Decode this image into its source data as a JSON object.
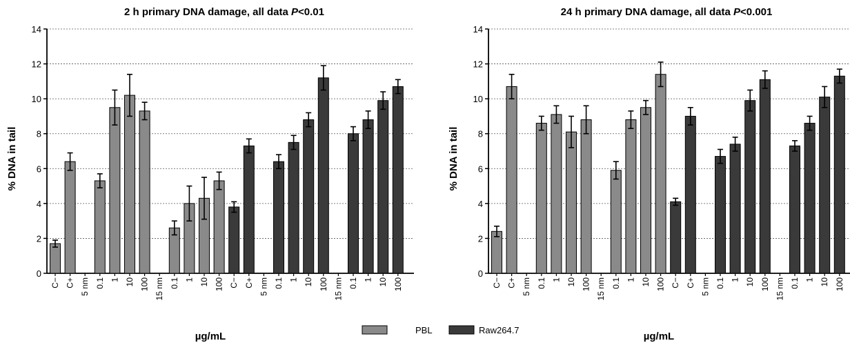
{
  "legend": [
    {
      "label": "PBL",
      "color": "#8a8a8a"
    },
    {
      "label": "Raw264.7",
      "color": "#3a3a3a"
    }
  ],
  "chart_data": [
    {
      "type": "bar",
      "title": "2 h primary DNA damage, all data ",
      "title_p": "P",
      "title_suffix": "<0.01",
      "ylabel": "% DNA in tail",
      "xlabel": "µg/mL",
      "ylim": [
        0,
        14
      ],
      "yticks": [
        0,
        2,
        4,
        6,
        8,
        10,
        12,
        14
      ],
      "grid": true,
      "categories": [
        "C−",
        "C+",
        "5 nm",
        "0.1",
        "1",
        "10",
        "100",
        "15 nm",
        "0.1",
        "1",
        "10",
        "100",
        "C−",
        "C+",
        "5 nm",
        "0.1",
        "1",
        "10",
        "100",
        "15 nm",
        "0.1",
        "1",
        "10",
        "100"
      ],
      "series": [
        {
          "name": "PBL",
          "values": [
            1.7,
            6.4,
            null,
            5.3,
            9.5,
            10.2,
            9.3,
            null,
            2.6,
            4.0,
            4.3,
            5.3,
            null,
            null,
            null,
            null,
            null,
            null,
            null,
            null,
            null,
            null,
            null,
            null
          ],
          "errors": [
            0.2,
            0.5,
            null,
            0.4,
            1.0,
            1.2,
            0.5,
            null,
            0.4,
            1.0,
            1.2,
            0.5,
            null,
            null,
            null,
            null,
            null,
            null,
            null,
            null,
            null,
            null,
            null,
            null
          ]
        },
        {
          "name": "Raw264.7",
          "values": [
            null,
            null,
            null,
            null,
            null,
            null,
            null,
            null,
            null,
            null,
            null,
            null,
            3.8,
            7.3,
            null,
            6.4,
            7.5,
            8.8,
            11.2,
            null,
            8.0,
            8.8,
            9.9,
            10.7
          ],
          "errors": [
            null,
            null,
            null,
            null,
            null,
            null,
            null,
            null,
            null,
            null,
            null,
            null,
            0.3,
            0.4,
            null,
            0.4,
            0.4,
            0.4,
            0.7,
            null,
            0.4,
            0.5,
            0.5,
            0.4
          ]
        }
      ]
    },
    {
      "type": "bar",
      "title": "24 h primary DNA damage, all data ",
      "title_p": "P",
      "title_suffix": "<0.001",
      "ylabel": "% DNA in tail",
      "xlabel": "µg/mL",
      "ylim": [
        0,
        14
      ],
      "yticks": [
        0,
        2,
        4,
        6,
        8,
        10,
        12,
        14
      ],
      "grid": true,
      "categories": [
        "C−",
        "C+",
        "5 nm",
        "0.1",
        "1",
        "10",
        "100",
        "15 nm",
        "0.1",
        "1",
        "10",
        "100",
        "C−",
        "C+",
        "5 nm",
        "0.1",
        "1",
        "10",
        "100",
        "15 nm",
        "0.1",
        "1",
        "10",
        "100"
      ],
      "series": [
        {
          "name": "PBL",
          "values": [
            2.4,
            10.7,
            null,
            8.6,
            9.1,
            8.1,
            8.8,
            null,
            5.9,
            8.8,
            9.5,
            11.4,
            null,
            null,
            null,
            null,
            null,
            null,
            null,
            null,
            null,
            null,
            null,
            null
          ],
          "errors": [
            0.3,
            0.7,
            null,
            0.4,
            0.5,
            0.9,
            0.8,
            null,
            0.5,
            0.5,
            0.4,
            0.7,
            null,
            null,
            null,
            null,
            null,
            null,
            null,
            null,
            null,
            null,
            null,
            null
          ]
        },
        {
          "name": "Raw264.7",
          "values": [
            null,
            null,
            null,
            null,
            null,
            null,
            null,
            null,
            null,
            null,
            null,
            null,
            4.1,
            9.0,
            null,
            6.7,
            7.4,
            9.9,
            11.1,
            null,
            7.3,
            8.6,
            10.1,
            11.3
          ],
          "errors": [
            null,
            null,
            null,
            null,
            null,
            null,
            null,
            null,
            null,
            null,
            null,
            null,
            0.2,
            0.5,
            null,
            0.4,
            0.4,
            0.6,
            0.5,
            null,
            0.3,
            0.4,
            0.6,
            0.4
          ]
        }
      ]
    }
  ]
}
